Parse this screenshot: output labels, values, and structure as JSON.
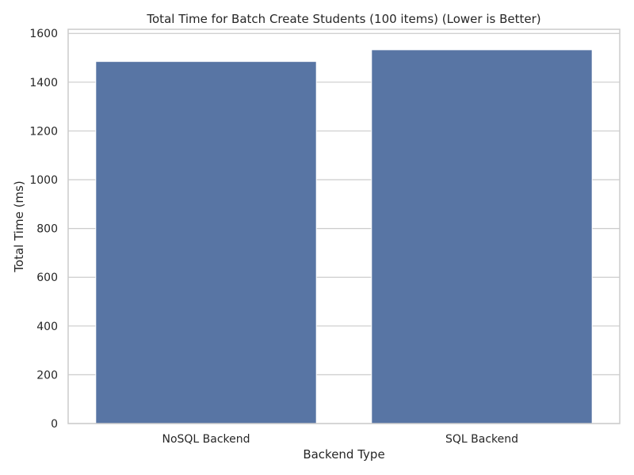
{
  "chart_data": {
    "type": "bar",
    "title": "Total Time for Batch Create Students (100 items) (Lower is Better)",
    "xlabel": "Backend Type",
    "ylabel": "Total Time (ms)",
    "categories": [
      "NoSQL Backend",
      "SQL Backend"
    ],
    "values": [
      1485,
      1533
    ],
    "ylim": [
      0,
      1617
    ],
    "yticks": [
      0,
      200,
      400,
      600,
      800,
      1000,
      1200,
      1400,
      1600
    ],
    "grid": "horizontal",
    "bar_color": "#5875a4",
    "frame_color": "#cccccc",
    "grid_color": "#cccccc"
  }
}
